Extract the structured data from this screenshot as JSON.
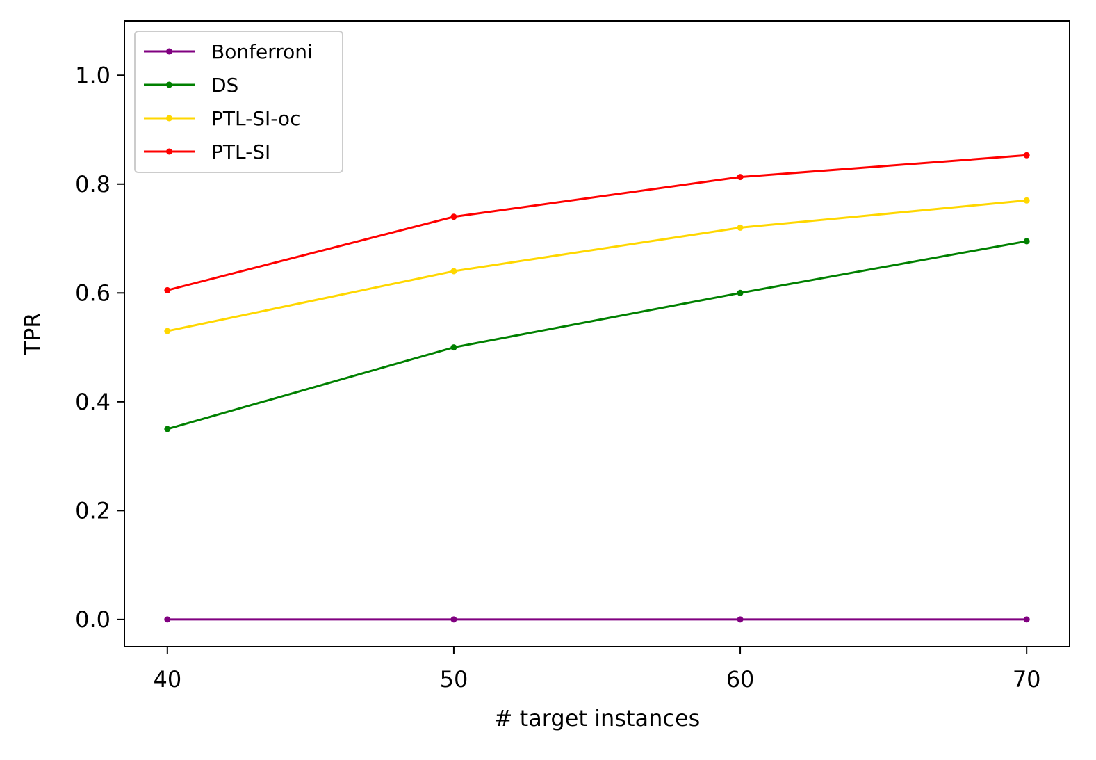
{
  "chart_data": {
    "type": "line",
    "title": "",
    "xlabel": "# target instances",
    "ylabel": "TPR",
    "x": [
      40,
      50,
      60,
      70
    ],
    "x_ticks": [
      "40",
      "50",
      "60",
      "70"
    ],
    "y_ticks": [
      "0.0",
      "0.2",
      "0.4",
      "0.6",
      "0.8",
      "1.0"
    ],
    "xlim": [
      38.5,
      71.5
    ],
    "ylim": [
      -0.05,
      1.1
    ],
    "grid": false,
    "legend_position": "top-left",
    "series": [
      {
        "name": "Bonferroni",
        "color": "#800080",
        "values": [
          0.0,
          0.0,
          0.0,
          0.0
        ]
      },
      {
        "name": "DS",
        "color": "#008000",
        "values": [
          0.35,
          0.5,
          0.6,
          0.695
        ]
      },
      {
        "name": "PTL-SI-oc",
        "color": "#FFD700",
        "values": [
          0.53,
          0.64,
          0.72,
          0.77
        ]
      },
      {
        "name": "PTL-SI",
        "color": "#FF0000",
        "values": [
          0.605,
          0.74,
          0.813,
          0.853
        ]
      }
    ]
  }
}
